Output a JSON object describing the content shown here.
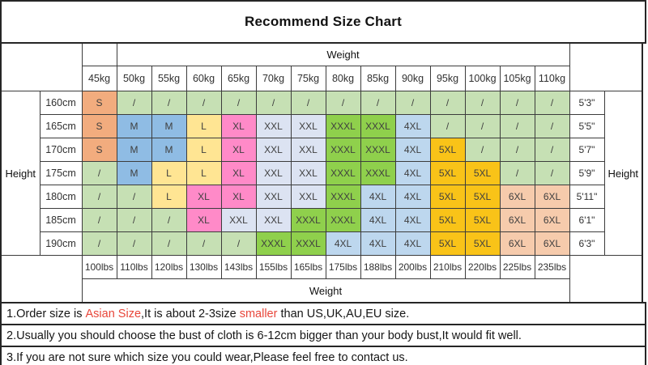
{
  "title": "Recommend Size Chart",
  "table": {
    "weight_header_top": "Weight",
    "weight_header_bottom": "Weight",
    "height_header_left": "Height",
    "height_header_right": "Height",
    "weights_kg": [
      "45kg",
      "50kg",
      "55kg",
      "60kg",
      "65kg",
      "70kg",
      "75kg",
      "80kg",
      "85kg",
      "90kg",
      "95kg",
      "100kg",
      "105kg",
      "110kg"
    ],
    "weights_lbs": [
      "100lbs",
      "110lbs",
      "120lbs",
      "130lbs",
      "143lbs",
      "155lbs",
      "165lbs",
      "175lbs",
      "188lbs",
      "200lbs",
      "210lbs",
      "220lbs",
      "225lbs",
      "235lbs"
    ],
    "rows": [
      {
        "height_cm": "160cm",
        "height_ft": "5'3\"",
        "sizes": [
          "S",
          "/",
          "/",
          "/",
          "/",
          "/",
          "/",
          "/",
          "/",
          "/",
          "/",
          "/",
          "/",
          "/"
        ]
      },
      {
        "height_cm": "165cm",
        "height_ft": "5'5\"",
        "sizes": [
          "S",
          "M",
          "M",
          "L",
          "XL",
          "XXL",
          "XXL",
          "XXXL",
          "XXXL",
          "4XL",
          "/",
          "/",
          "/",
          "/"
        ]
      },
      {
        "height_cm": "170cm",
        "height_ft": "5'7\"",
        "sizes": [
          "S",
          "M",
          "M",
          "L",
          "XL",
          "XXL",
          "XXL",
          "XXXL",
          "XXXL",
          "4XL",
          "5XL",
          "/",
          "/",
          "/"
        ]
      },
      {
        "height_cm": "175cm",
        "height_ft": "5'9\"",
        "sizes": [
          "/",
          "M",
          "L",
          "L",
          "XL",
          "XXL",
          "XXL",
          "XXXL",
          "XXXL",
          "4XL",
          "5XL",
          "5XL",
          "/",
          "/"
        ]
      },
      {
        "height_cm": "180cm",
        "height_ft": "5'11\"",
        "sizes": [
          "/",
          "/",
          "L",
          "XL",
          "XL",
          "XXL",
          "XXL",
          "XXXL",
          "4XL",
          "4XL",
          "5XL",
          "5XL",
          "6XL",
          "6XL"
        ]
      },
      {
        "height_cm": "185cm",
        "height_ft": "6'1\"",
        "sizes": [
          "/",
          "/",
          "/",
          "XL",
          "XXL",
          "XXL",
          "XXXL",
          "XXXL",
          "4XL",
          "4XL",
          "5XL",
          "5XL",
          "6XL",
          "6XL"
        ]
      },
      {
        "height_cm": "190cm",
        "height_ft": "6'3\"",
        "sizes": [
          "/",
          "/",
          "/",
          "/",
          "/",
          "XXXL",
          "XXXL",
          "4XL",
          "4XL",
          "4XL",
          "5XL",
          "5XL",
          "6XL",
          "6XL"
        ]
      }
    ]
  },
  "size_colors": {
    "S": "#F2AC7E",
    "M": "#8FBCE4",
    "L": "#FFE593",
    "XL": "#FF8AC8",
    "XXL": "#DCE3F2",
    "XXXL": "#8FD04C",
    "4XL": "#BDD7EE",
    "5XL": "#F9C318",
    "6XL": "#F6CBAC",
    "/": "#C6E0B4"
  },
  "notes": [
    {
      "segments": [
        {
          "text": "1.Order size is ",
          "red": false
        },
        {
          "text": "Asian Size",
          "red": true
        },
        {
          "text": ",It is about 2-3size ",
          "red": false
        },
        {
          "text": "smaller",
          "red": true
        },
        {
          "text": " than US,UK,AU,EU size.",
          "red": false
        }
      ]
    },
    {
      "segments": [
        {
          "text": "2.Usually you should choose the bust of cloth is 6-12cm bigger than your body bust,It would fit well.",
          "red": false
        }
      ]
    },
    {
      "segments": [
        {
          "text": "3.If you are not sure which size you could wear,Please feel free to contact us.",
          "red": false
        }
      ]
    }
  ],
  "colors": {
    "note_red": "#E8463A",
    "cell_text": "#3F3F3F",
    "border": "#3C3C3C"
  }
}
